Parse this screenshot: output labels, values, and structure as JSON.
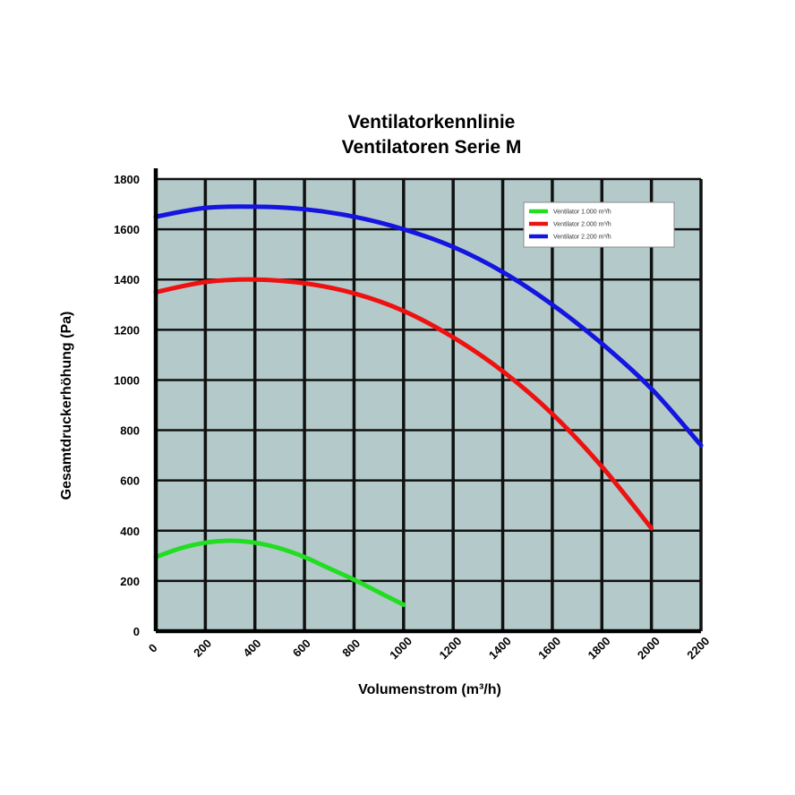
{
  "chart_data": {
    "type": "line",
    "title_lines": [
      "Ventilatorkennlinie",
      "Ventilatoren Serie M"
    ],
    "xlabel": "Volumenstrom (m³/h)",
    "ylabel": "Gesamtdruckerhöhung (Pa)",
    "xlim": [
      0,
      2200
    ],
    "ylim": [
      0,
      1800
    ],
    "xticks": [
      0,
      200,
      400,
      600,
      800,
      1000,
      1200,
      1400,
      1600,
      1800,
      2000,
      2200
    ],
    "yticks": [
      0,
      200,
      400,
      600,
      800,
      1000,
      1200,
      1400,
      1600,
      1800
    ],
    "xtick_labels": [
      "0",
      "200",
      "400",
      "600",
      "800",
      "1000",
      "1200",
      "1400",
      "1600",
      "1800",
      "2000",
      "2200"
    ],
    "ytick_labels": [
      "0",
      "200",
      "400",
      "600",
      "800",
      "1000",
      "1200",
      "1400",
      "1600",
      "1800"
    ],
    "grid": true,
    "plot_background": "#b4caca",
    "grid_color": "#111111",
    "legend_position": "top-right",
    "series": [
      {
        "name": "Ventilator 1.000 m³/h",
        "color": "#22dd22",
        "x": [
          0,
          100,
          200,
          300,
          400,
          500,
          600,
          700,
          800,
          900,
          1000
        ],
        "y": [
          295,
          330,
          352,
          360,
          352,
          330,
          295,
          250,
          205,
          155,
          105
        ]
      },
      {
        "name": "Ventilator 2.000 m³/h",
        "color": "#ee1111",
        "x": [
          0,
          200,
          400,
          600,
          800,
          1000,
          1200,
          1400,
          1600,
          1800,
          2000
        ],
        "y": [
          1350,
          1390,
          1400,
          1385,
          1345,
          1275,
          1170,
          1035,
          865,
          655,
          410
        ]
      },
      {
        "name": "Ventilator 2.200 m³/h",
        "color": "#1515e0",
        "x": [
          0,
          200,
          400,
          600,
          800,
          1000,
          1200,
          1400,
          1600,
          1800,
          2000,
          2200
        ],
        "y": [
          1650,
          1685,
          1690,
          1680,
          1650,
          1600,
          1530,
          1430,
          1300,
          1145,
          965,
          740
        ]
      }
    ]
  }
}
